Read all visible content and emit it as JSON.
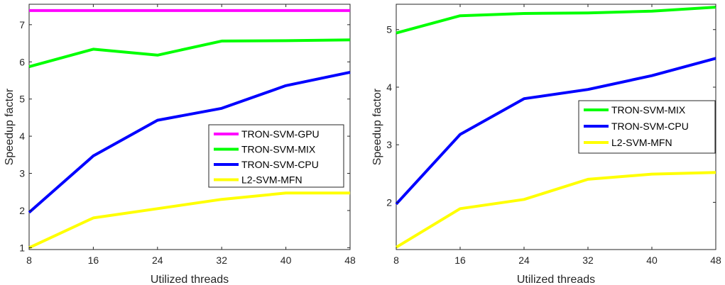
{
  "chart_data": [
    {
      "type": "line",
      "xlabel": "Utilized threads",
      "ylabel": "Speedup factor",
      "xlim": [
        8,
        48
      ],
      "ylim": [
        0.95,
        7.55
      ],
      "xticks": [
        8,
        16,
        24,
        32,
        40,
        48
      ],
      "yticks": [
        1,
        2,
        3,
        4,
        5,
        6,
        7
      ],
      "legend_position": "center-right",
      "grid": false,
      "series": [
        {
          "name": "TRON-SVM-GPU",
          "color": "#ff00ff",
          "x": [
            8,
            16,
            24,
            32,
            40,
            48
          ],
          "values": [
            7.38,
            7.38,
            7.38,
            7.38,
            7.38,
            7.38
          ]
        },
        {
          "name": "TRON-SVM-MIX",
          "color": "#00ff00",
          "x": [
            8,
            16,
            24,
            32,
            40,
            48
          ],
          "values": [
            5.87,
            6.34,
            6.18,
            6.56,
            6.57,
            6.59
          ]
        },
        {
          "name": "TRON-SVM-CPU",
          "color": "#0000ff",
          "x": [
            8,
            16,
            24,
            32,
            40,
            48
          ],
          "values": [
            1.95,
            3.47,
            4.43,
            4.75,
            5.36,
            5.72
          ]
        },
        {
          "name": "L2-SVM-MFN",
          "color": "#ffff00",
          "x": [
            8,
            16,
            24,
            32,
            40,
            48
          ],
          "values": [
            1.0,
            1.8,
            2.05,
            2.3,
            2.47,
            2.47
          ]
        }
      ]
    },
    {
      "type": "line",
      "xlabel": "Utilized threads",
      "ylabel": "Speedup factor",
      "xlim": [
        8,
        48
      ],
      "ylim": [
        1.18,
        5.44
      ],
      "xticks": [
        8,
        16,
        24,
        32,
        40,
        48
      ],
      "yticks": [
        2,
        3,
        4,
        5
      ],
      "legend_position": "center-right",
      "grid": false,
      "series": [
        {
          "name": "TRON-SVM-MIX",
          "color": "#00ff00",
          "x": [
            8,
            16,
            24,
            32,
            40,
            48
          ],
          "values": [
            4.94,
            5.24,
            5.28,
            5.29,
            5.32,
            5.39
          ]
        },
        {
          "name": "TRON-SVM-CPU",
          "color": "#0000ff",
          "x": [
            8,
            16,
            24,
            32,
            40,
            48
          ],
          "values": [
            1.97,
            3.18,
            3.8,
            3.96,
            4.2,
            4.5
          ]
        },
        {
          "name": "L2-SVM-MFN",
          "color": "#ffff00",
          "x": [
            8,
            16,
            24,
            32,
            40,
            48
          ],
          "values": [
            1.22,
            1.89,
            2.05,
            2.4,
            2.49,
            2.52
          ]
        }
      ]
    }
  ]
}
